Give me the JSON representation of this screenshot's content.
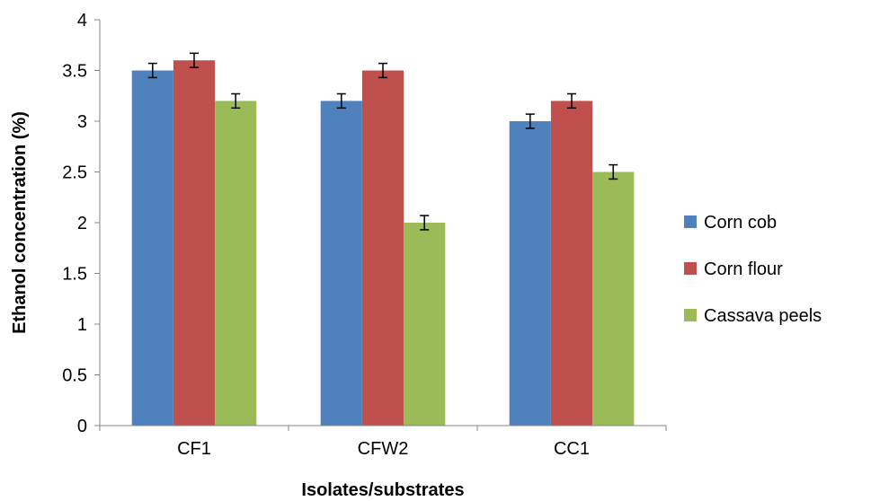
{
  "chart_data": {
    "type": "bar",
    "xlabel": "Isolates/substrates",
    "ylabel": "Ethanol concentration (%)",
    "categories": [
      "CF1",
      "CFW2",
      "CC1"
    ],
    "ylim": [
      0,
      4
    ],
    "yticks": [
      "0",
      "0.5",
      "1",
      "1.5",
      "2",
      "2.5",
      "3",
      "3.5",
      "4"
    ],
    "grid": false,
    "legend_position": "right",
    "error_bars": true,
    "series": [
      {
        "name": "Corn cob",
        "color": "#4f81bd",
        "values": [
          3.5,
          3.2,
          3.0
        ],
        "errors": [
          0.07,
          0.07,
          0.07
        ]
      },
      {
        "name": "Corn flour",
        "color": "#c0504d",
        "values": [
          3.6,
          3.5,
          3.2
        ],
        "errors": [
          0.07,
          0.07,
          0.07
        ]
      },
      {
        "name": "Cassava peels",
        "color": "#9bbb59",
        "values": [
          3.2,
          2.0,
          2.5
        ],
        "errors": [
          0.07,
          0.07,
          0.07
        ]
      }
    ]
  }
}
